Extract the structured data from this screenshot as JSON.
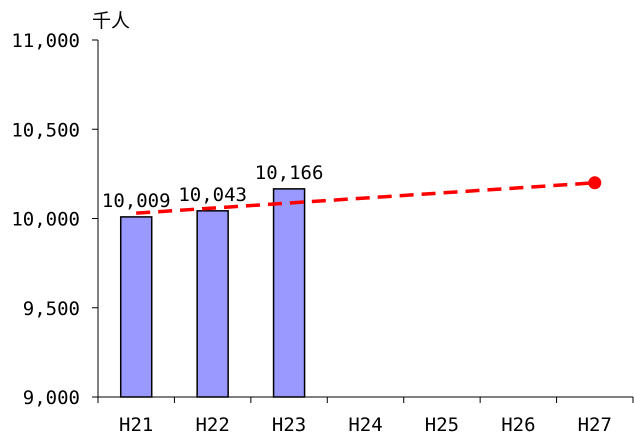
{
  "chart_data": {
    "type": "bar",
    "unit_label": "千人",
    "categories": [
      "H21",
      "H22",
      "H23",
      "H24",
      "H25",
      "H26",
      "H27"
    ],
    "series": [
      {
        "values": [
          10009,
          10043,
          10166,
          null,
          null,
          null,
          null
        ],
        "data_labels": [
          "10,009",
          "10,043",
          "10,166",
          "",
          "",
          "",
          ""
        ],
        "color": "#9999ff"
      }
    ],
    "trend_line": {
      "style": "dashed",
      "color": "#ff0000",
      "start": {
        "x": "H21",
        "y": 10030
      },
      "end": {
        "x": "H27",
        "y": 10200
      },
      "end_marker": "dot"
    },
    "y_ticks": [
      "9,000",
      "9,500",
      "10,000",
      "10,500",
      "11,000"
    ],
    "y_tick_values": [
      9000,
      9500,
      10000,
      10500,
      11000
    ],
    "ylim": [
      9000,
      11000
    ],
    "grid": false,
    "legend": "none"
  }
}
